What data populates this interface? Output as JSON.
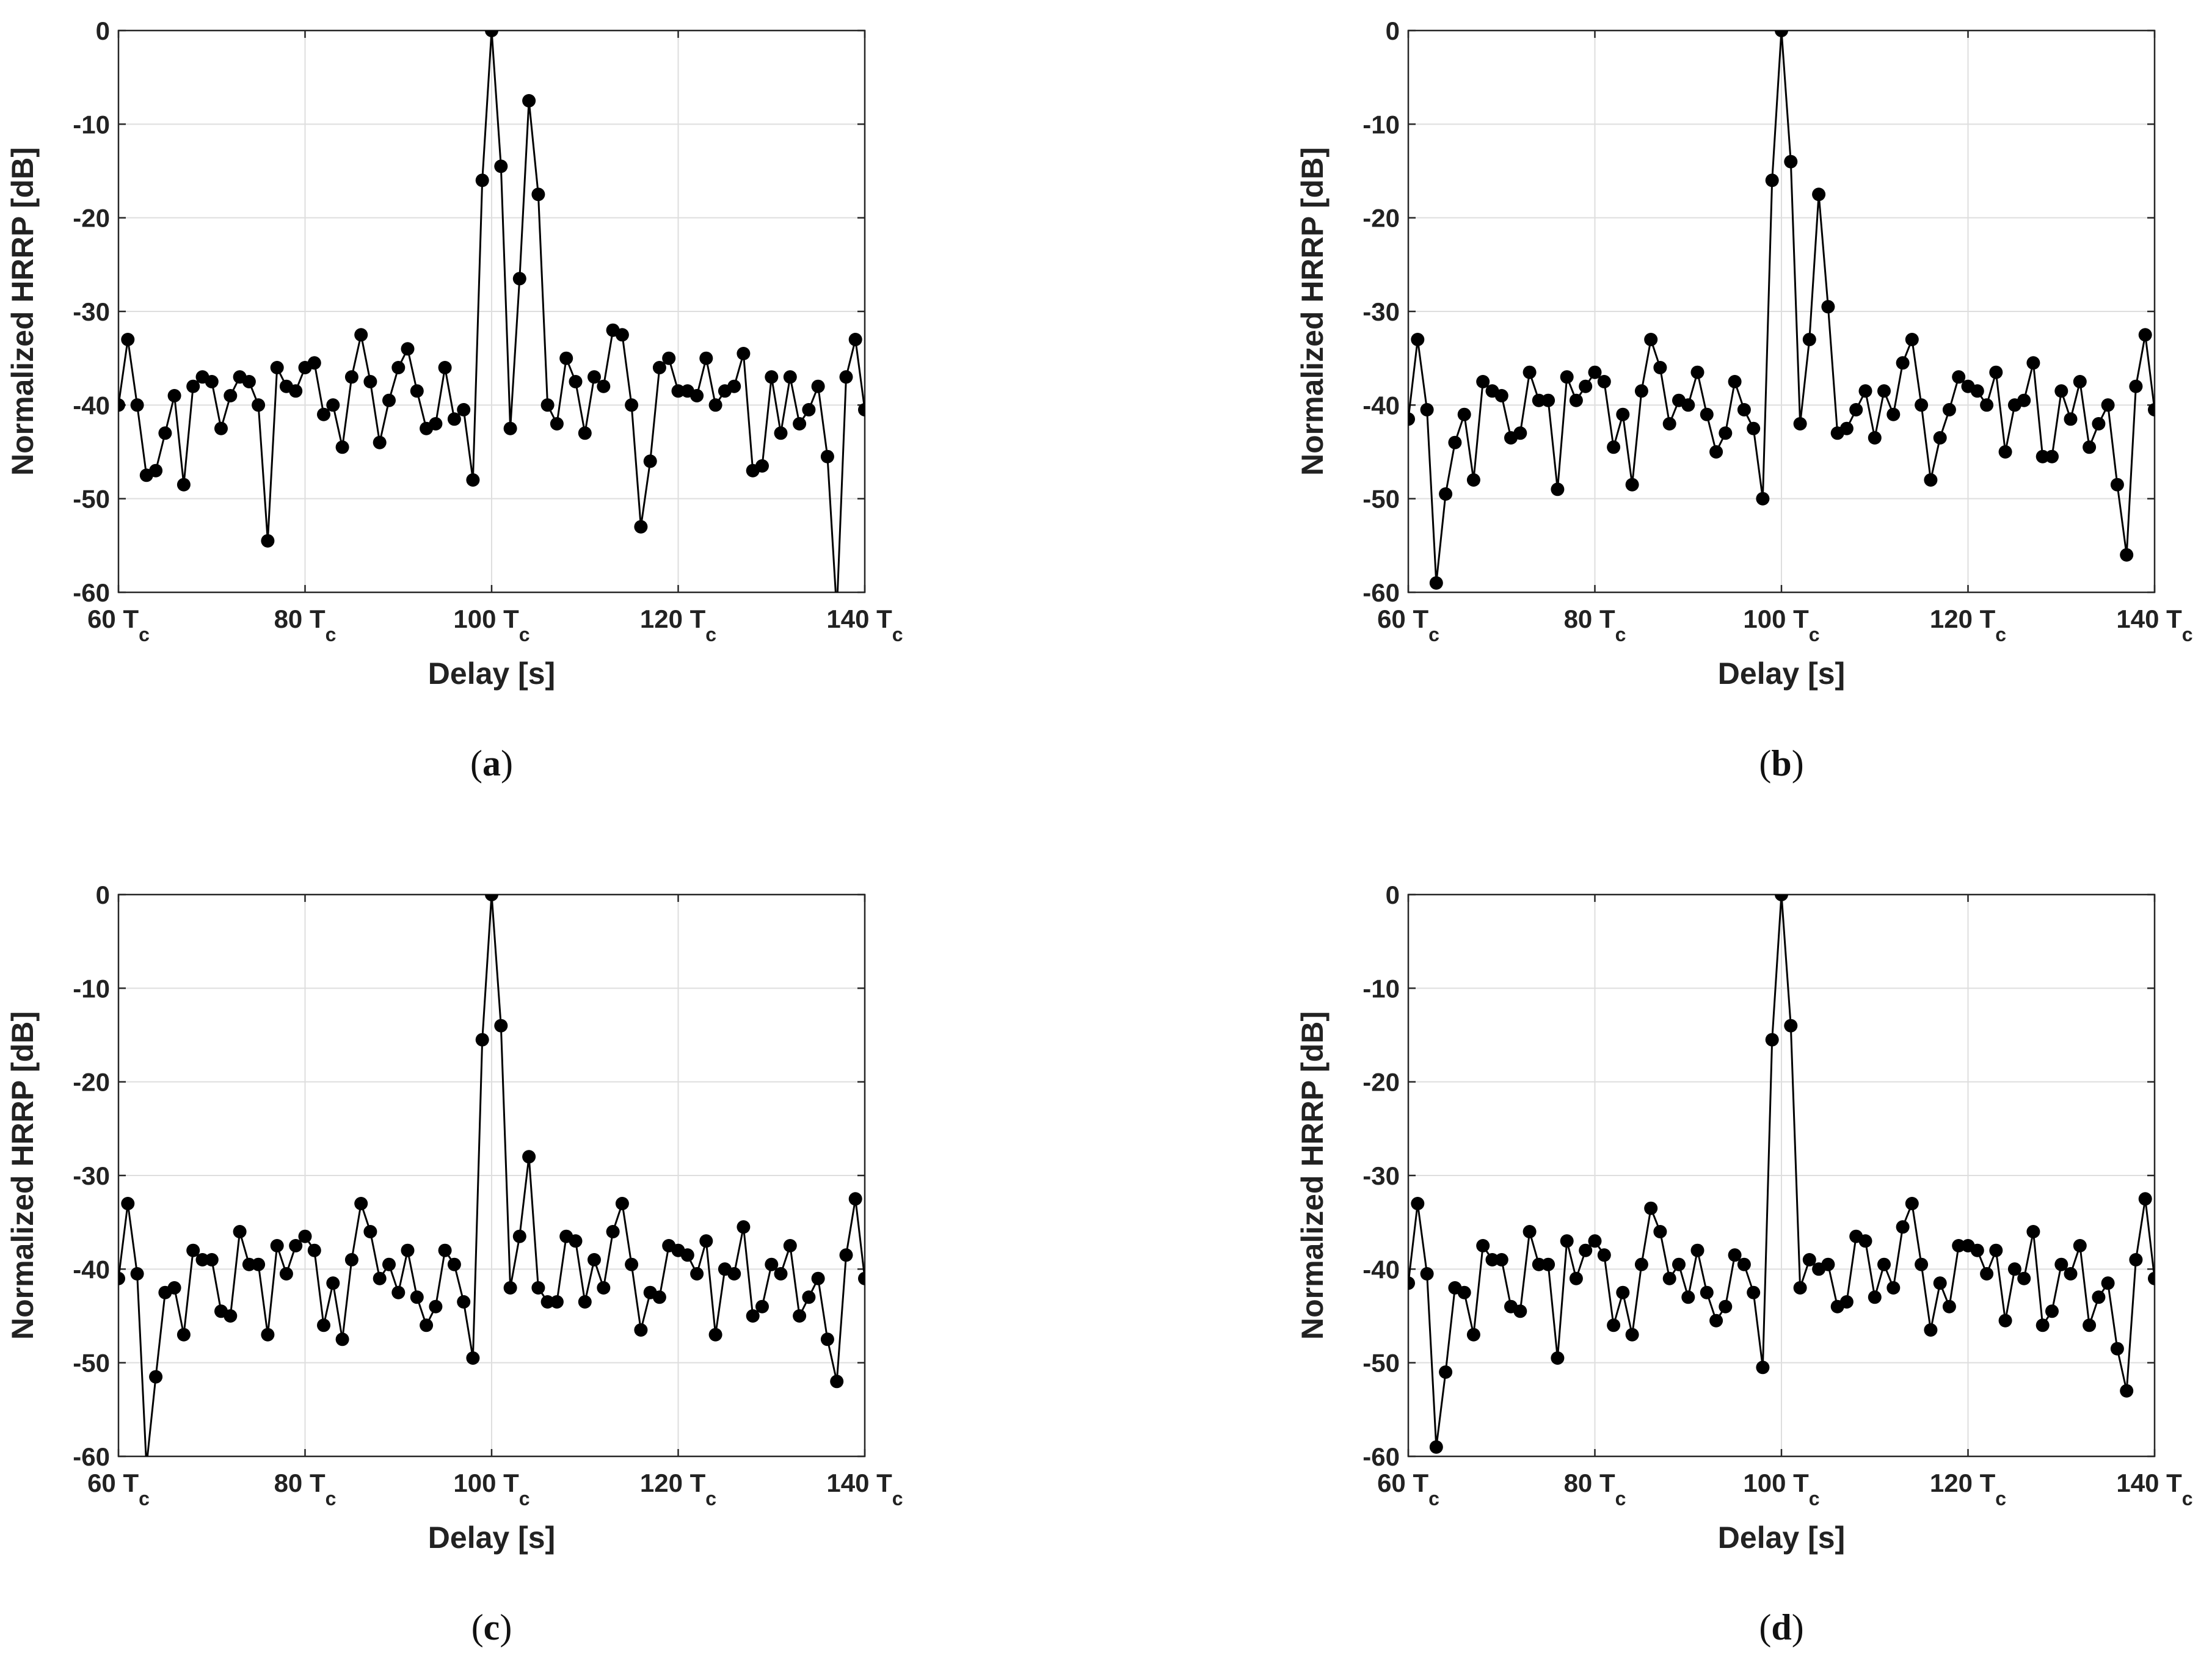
{
  "chart_data": [
    {
      "type": "line",
      "panel": "a",
      "caption": {
        "open": "(",
        "letter": "a",
        "close": ")"
      },
      "xlabel": "Delay [s]",
      "ylabel": "Normalized HRRP [dB]",
      "xlim": [
        60,
        140
      ],
      "ylim": [
        -60,
        0
      ],
      "xticks": [
        60,
        80,
        100,
        120,
        140
      ],
      "xtick_labels": [
        {
          "main": "60 T",
          "sub": "c"
        },
        {
          "main": "80 T",
          "sub": "c"
        },
        {
          "main": "100 T",
          "sub": "c"
        },
        {
          "main": "120 T",
          "sub": "c"
        },
        {
          "main": "140 T",
          "sub": "c"
        }
      ],
      "yticks": [
        0,
        -10,
        -20,
        -30,
        -40,
        -50,
        -60
      ],
      "grid": true,
      "marker": "circle",
      "line_color": "#000000",
      "x_start": 60,
      "values": [
        -40,
        -33,
        -40,
        -47.5,
        -47,
        -43,
        -39,
        -48.5,
        -38,
        -37,
        -37.5,
        -42.5,
        -39,
        -37,
        -37.5,
        -40,
        -54.5,
        -36,
        -38,
        -38.5,
        -36,
        -35.5,
        -41,
        -40,
        -44.5,
        -37,
        -32.5,
        -37.5,
        -44,
        -39.5,
        -36,
        -34,
        -38.5,
        -42.5,
        -42,
        -36,
        -41.5,
        -40.5,
        -48,
        -16,
        0,
        -14.5,
        -42.5,
        -26.5,
        -7.5,
        -17.5,
        -40,
        -42,
        -35,
        -37.5,
        -43,
        -37,
        -38,
        -32,
        -32.5,
        -40,
        -53,
        -46,
        -36,
        -35,
        -38.5,
        -38.5,
        -39,
        -35,
        -40,
        -38.5,
        -38,
        -34.5,
        -47,
        -46.5,
        -37,
        -43,
        -37,
        -42,
        -40.5,
        -38,
        -45.5,
        -62,
        -37,
        -33,
        -40.5
      ]
    },
    {
      "type": "line",
      "panel": "b",
      "caption": {
        "open": "(",
        "letter": "b",
        "close": ")"
      },
      "xlabel": "Delay [s]",
      "ylabel": "Normalized HRRP [dB]",
      "xlim": [
        60,
        140
      ],
      "ylim": [
        -60,
        0
      ],
      "xticks": [
        60,
        80,
        100,
        120,
        140
      ],
      "xtick_labels": [
        {
          "main": "60 T",
          "sub": "c"
        },
        {
          "main": "80 T",
          "sub": "c"
        },
        {
          "main": "100 T",
          "sub": "c"
        },
        {
          "main": "120 T",
          "sub": "c"
        },
        {
          "main": "140 T",
          "sub": "c"
        }
      ],
      "yticks": [
        0,
        -10,
        -20,
        -30,
        -40,
        -50,
        -60
      ],
      "grid": true,
      "marker": "circle",
      "line_color": "#000000",
      "x_start": 60,
      "values": [
        -41.5,
        -33,
        -40.5,
        -59,
        -49.5,
        -44,
        -41,
        -48,
        -37.5,
        -38.5,
        -39,
        -43.5,
        -43,
        -36.5,
        -39.5,
        -39.5,
        -49,
        -37,
        -39.5,
        -38,
        -36.5,
        -37.5,
        -44.5,
        -41,
        -48.5,
        -38.5,
        -33,
        -36,
        -42,
        -39.5,
        -40,
        -36.5,
        -41,
        -45,
        -43,
        -37.5,
        -40.5,
        -42.5,
        -50,
        -16,
        0,
        -14,
        -42,
        -33,
        -17.5,
        -29.5,
        -43,
        -42.5,
        -40.5,
        -38.5,
        -43.5,
        -38.5,
        -41,
        -35.5,
        -33,
        -40,
        -48,
        -43.5,
        -40.5,
        -37,
        -38,
        -38.5,
        -40,
        -36.5,
        -45,
        -40,
        -39.5,
        -35.5,
        -45.5,
        -45.5,
        -38.5,
        -41.5,
        -37.5,
        -44.5,
        -42,
        -40,
        -48.5,
        -56,
        -38,
        -32.5,
        -40.5
      ]
    },
    {
      "type": "line",
      "panel": "c",
      "caption": {
        "open": "(",
        "letter": "c",
        "close": ")"
      },
      "xlabel": "Delay [s]",
      "ylabel": "Normalized HRRP [dB]",
      "xlim": [
        60,
        140
      ],
      "ylim": [
        -60,
        0
      ],
      "xticks": [
        60,
        80,
        100,
        120,
        140
      ],
      "xtick_labels": [
        {
          "main": "60 T",
          "sub": "c"
        },
        {
          "main": "80 T",
          "sub": "c"
        },
        {
          "main": "100 T",
          "sub": "c"
        },
        {
          "main": "120 T",
          "sub": "c"
        },
        {
          "main": "140 T",
          "sub": "c"
        }
      ],
      "yticks": [
        0,
        -10,
        -20,
        -30,
        -40,
        -50,
        -60
      ],
      "grid": true,
      "marker": "circle",
      "line_color": "#000000",
      "x_start": 60,
      "values": [
        -41,
        -33,
        -40.5,
        -61,
        -51.5,
        -42.5,
        -42,
        -47,
        -38,
        -39,
        -39,
        -44.5,
        -45,
        -36,
        -39.5,
        -39.5,
        -47,
        -37.5,
        -40.5,
        -37.5,
        -36.5,
        -38,
        -46,
        -41.5,
        -47.5,
        -39,
        -33,
        -36,
        -41,
        -39.5,
        -42.5,
        -38,
        -43,
        -46,
        -44,
        -38,
        -39.5,
        -43.5,
        -49.5,
        -15.5,
        0,
        -14,
        -42,
        -36.5,
        -28,
        -42,
        -43.5,
        -43.5,
        -36.5,
        -37,
        -43.5,
        -39,
        -42,
        -36,
        -33,
        -39.5,
        -46.5,
        -42.5,
        -43,
        -37.5,
        -38,
        -38.5,
        -40.5,
        -37,
        -47,
        -40,
        -40.5,
        -35.5,
        -45,
        -44,
        -39.5,
        -40.5,
        -37.5,
        -45,
        -43,
        -41,
        -47.5,
        -52,
        -38.5,
        -32.5,
        -41
      ]
    },
    {
      "type": "line",
      "panel": "d",
      "caption": {
        "open": "(",
        "letter": "d",
        "close": ")"
      },
      "xlabel": "Delay [s]",
      "ylabel": "Normalized HRRP [dB]",
      "xlim": [
        60,
        140
      ],
      "ylim": [
        -60,
        0
      ],
      "xticks": [
        60,
        80,
        100,
        120,
        140
      ],
      "xtick_labels": [
        {
          "main": "60 T",
          "sub": "c"
        },
        {
          "main": "80 T",
          "sub": "c"
        },
        {
          "main": "100 T",
          "sub": "c"
        },
        {
          "main": "120 T",
          "sub": "c"
        },
        {
          "main": "140 T",
          "sub": "c"
        }
      ],
      "yticks": [
        0,
        -10,
        -20,
        -30,
        -40,
        -50,
        -60
      ],
      "grid": true,
      "marker": "circle",
      "line_color": "#000000",
      "x_start": 60,
      "values": [
        -41.5,
        -33,
        -40.5,
        -59,
        -51,
        -42,
        -42.5,
        -47,
        -37.5,
        -39,
        -39,
        -44,
        -44.5,
        -36,
        -39.5,
        -39.5,
        -49.5,
        -37,
        -41,
        -38,
        -37,
        -38.5,
        -46,
        -42.5,
        -47,
        -39.5,
        -33.5,
        -36,
        -41,
        -39.5,
        -43,
        -38,
        -42.5,
        -45.5,
        -44,
        -38.5,
        -39.5,
        -42.5,
        -50.5,
        -15.5,
        0,
        -14,
        -42,
        -39,
        -40,
        -39.5,
        -44,
        -43.5,
        -36.5,
        -37,
        -43,
        -39.5,
        -42,
        -35.5,
        -33,
        -39.5,
        -46.5,
        -41.5,
        -44,
        -37.5,
        -37.5,
        -38,
        -40.5,
        -38,
        -45.5,
        -40,
        -41,
        -36,
        -46,
        -44.5,
        -39.5,
        -40.5,
        -37.5,
        -46,
        -43,
        -41.5,
        -48.5,
        -53,
        -39,
        -32.5,
        -41
      ]
    }
  ]
}
